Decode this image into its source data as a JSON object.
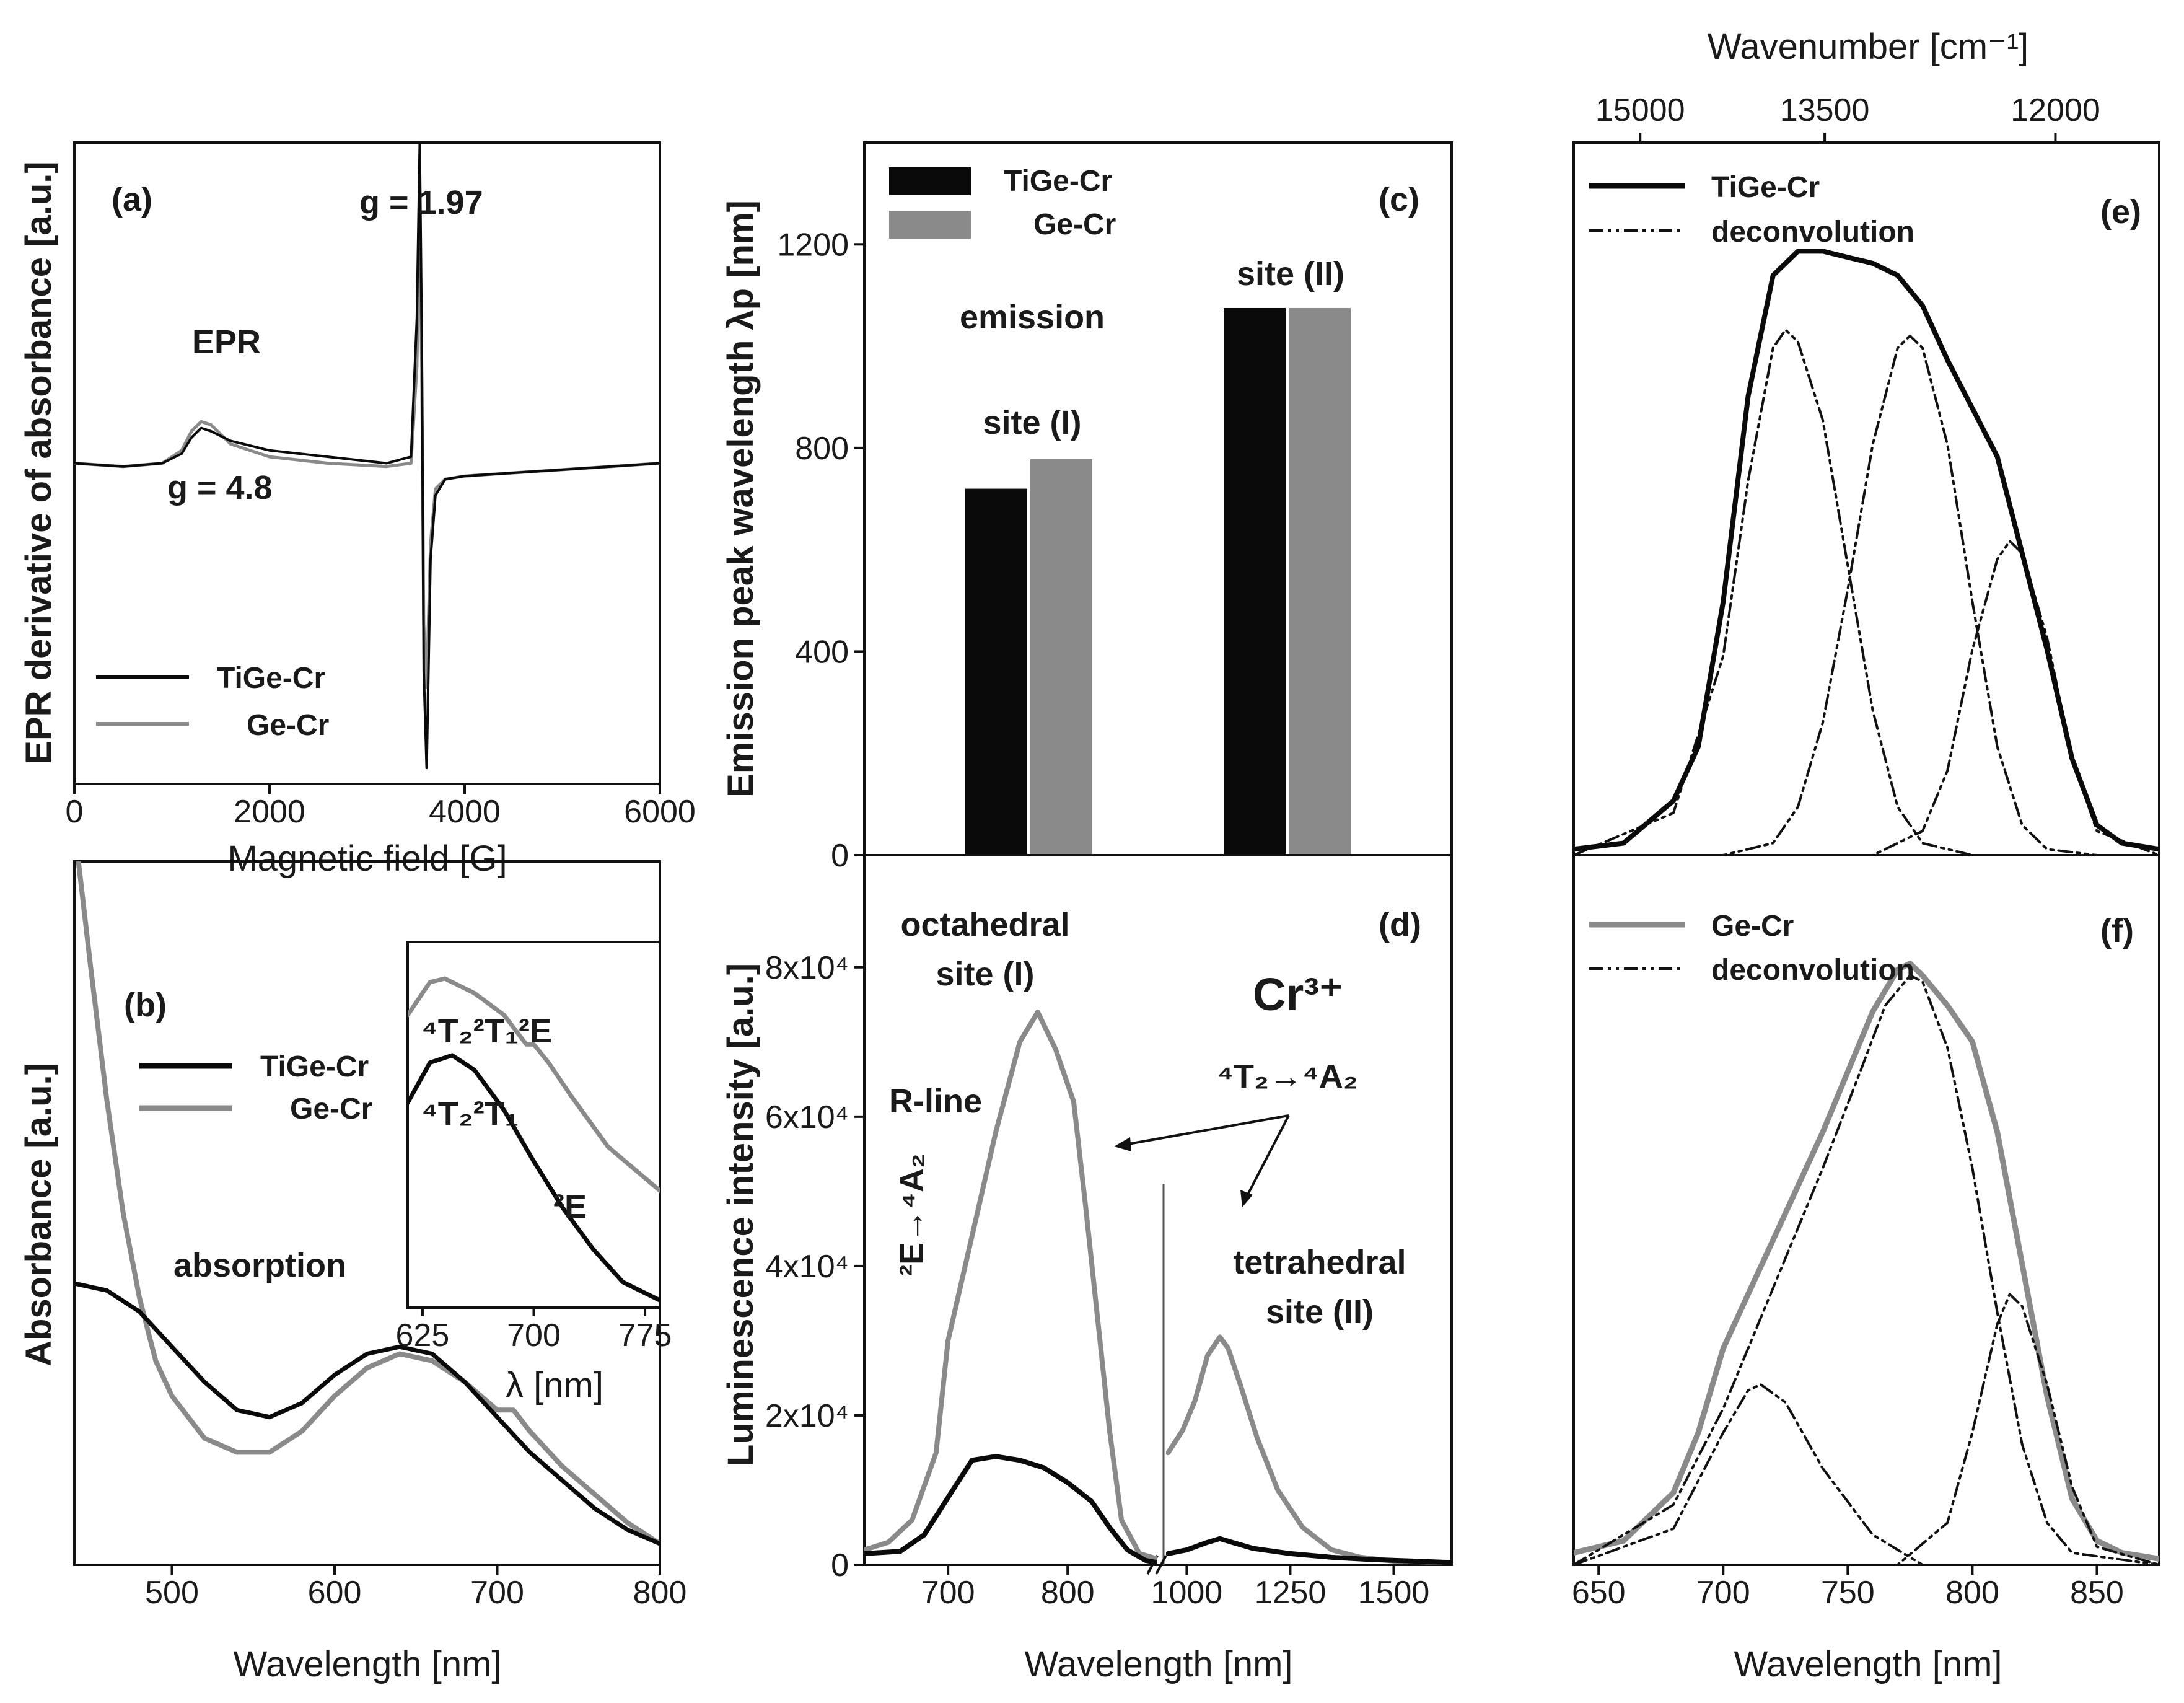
{
  "figure": "Cr-doped glass spectroscopy panels",
  "colors": {
    "tige": "#0a0a0a",
    "ge": "#8a8a8a",
    "deconv": "#111111"
  },
  "chart_data": [
    {
      "id": "a",
      "type": "line",
      "panel_label": "(a)",
      "xlabel": "Magnetic field [G]",
      "ylabel": "EPR derivative of absorbance [a.u.]",
      "xlim": [
        0,
        6000
      ],
      "ylim": [
        -1.0,
        1.0
      ],
      "xticks": [
        0,
        2000,
        4000,
        6000
      ],
      "xtick_labels": [
        "0",
        "2000",
        "4000",
        "6000"
      ],
      "annotations": {
        "method": "EPR",
        "g_high": "g = 1.97",
        "g_low": "g = 4.8"
      },
      "legend": [
        "TiGe-Cr",
        "Ge-Cr"
      ],
      "series": [
        {
          "name": "TiGe-Cr",
          "color": "#0a0a0a",
          "x": [
            0,
            500,
            900,
            1100,
            1200,
            1300,
            1400,
            1600,
            2000,
            2600,
            3200,
            3450,
            3510,
            3540,
            3560,
            3580,
            3610,
            3650,
            3700,
            3800,
            4000,
            4500,
            5000,
            5500,
            6000
          ],
          "y": [
            0.0,
            -0.01,
            0.0,
            0.03,
            0.08,
            0.11,
            0.1,
            0.07,
            0.04,
            0.02,
            0.0,
            0.02,
            0.45,
            1.0,
            0.4,
            -0.65,
            -0.95,
            -0.3,
            -0.1,
            -0.05,
            -0.04,
            -0.03,
            -0.02,
            -0.01,
            0.0
          ]
        },
        {
          "name": "Ge-Cr",
          "color": "#8a8a8a",
          "x": [
            0,
            500,
            900,
            1100,
            1200,
            1300,
            1400,
            1600,
            2000,
            2600,
            3200,
            3450,
            3510,
            3540,
            3560,
            3580,
            3610,
            3650,
            3700,
            3800,
            4000,
            4500,
            5000,
            5500,
            6000
          ],
          "y": [
            0.0,
            -0.01,
            0.0,
            0.04,
            0.1,
            0.13,
            0.12,
            0.06,
            0.02,
            0.0,
            -0.01,
            0.0,
            0.3,
            0.75,
            0.3,
            -0.5,
            -0.7,
            -0.25,
            -0.08,
            -0.05,
            -0.04,
            -0.03,
            -0.02,
            -0.01,
            0.0
          ]
        }
      ]
    },
    {
      "id": "b",
      "type": "line",
      "panel_label": "(b)",
      "xlabel": "Wavelength [nm]",
      "ylabel": "Absorbance [a.u.]",
      "xlim": [
        440,
        800
      ],
      "ylim": [
        0,
        1
      ],
      "xticks": [
        500,
        600,
        700,
        800
      ],
      "xtick_labels": [
        "500",
        "600",
        "700",
        "800"
      ],
      "annotations": {
        "method": "absorption"
      },
      "legend": [
        "TiGe-Cr",
        "Ge-Cr"
      ],
      "series": [
        {
          "name": "TiGe-Cr",
          "color": "#0a0a0a",
          "x": [
            440,
            460,
            480,
            500,
            520,
            540,
            560,
            580,
            600,
            620,
            640,
            660,
            680,
            700,
            720,
            740,
            760,
            780,
            800
          ],
          "y": [
            0.4,
            0.39,
            0.36,
            0.31,
            0.26,
            0.22,
            0.21,
            0.23,
            0.27,
            0.3,
            0.31,
            0.3,
            0.26,
            0.21,
            0.16,
            0.12,
            0.08,
            0.05,
            0.03
          ]
        },
        {
          "name": "Ge-Cr",
          "color": "#8a8a8a",
          "x": [
            440,
            450,
            460,
            470,
            480,
            490,
            500,
            520,
            540,
            560,
            580,
            600,
            620,
            640,
            660,
            680,
            700,
            710,
            720,
            740,
            760,
            780,
            800
          ],
          "y": [
            1.05,
            0.85,
            0.66,
            0.5,
            0.38,
            0.29,
            0.24,
            0.18,
            0.16,
            0.16,
            0.19,
            0.24,
            0.28,
            0.3,
            0.29,
            0.26,
            0.22,
            0.22,
            0.19,
            0.14,
            0.1,
            0.06,
            0.03
          ]
        }
      ],
      "inset": {
        "xlabel": "λ [nm]",
        "xlim": [
          615,
          785
        ],
        "xticks": [
          625,
          700,
          775
        ],
        "xtick_labels": [
          "625",
          "700",
          "775"
        ],
        "labels": {
          "ge_main": "⁴T₂²T₁²E",
          "tige_main": "⁴T₂²T₁",
          "tige_shoulder": "²E"
        },
        "series": [
          {
            "name": "Ge-Cr",
            "color": "#8a8a8a",
            "x": [
              615,
              630,
              640,
              660,
              680,
              695,
              700,
              710,
              725,
              750,
              785
            ],
            "y": [
              0.8,
              0.89,
              0.9,
              0.86,
              0.8,
              0.72,
              0.72,
              0.67,
              0.58,
              0.44,
              0.32
            ]
          },
          {
            "name": "TiGe-Cr",
            "color": "#0a0a0a",
            "x": [
              615,
              630,
              645,
              660,
              680,
              700,
              720,
              740,
              760,
              785
            ],
            "y": [
              0.56,
              0.67,
              0.69,
              0.65,
              0.54,
              0.4,
              0.27,
              0.16,
              0.07,
              0.02
            ]
          }
        ]
      }
    },
    {
      "id": "c",
      "type": "bar",
      "panel_label": "(c)",
      "ylabel": "Emission peak wavelength λp [nm]",
      "ylim": [
        0,
        1400
      ],
      "yticks": [
        0,
        400,
        800,
        1200
      ],
      "ytick_labels": [
        "0",
        "400",
        "800",
        "1200"
      ],
      "categories": [
        "site (I)",
        "site (II)"
      ],
      "annotations": {
        "title": "emission"
      },
      "legend": [
        "TiGe-Cr",
        "Ge-Cr"
      ],
      "series": [
        {
          "name": "TiGe-Cr",
          "color": "#0a0a0a",
          "values": [
            720,
            1075
          ]
        },
        {
          "name": "Ge-Cr",
          "color": "#8a8a8a",
          "values": [
            778,
            1075
          ]
        }
      ]
    },
    {
      "id": "d",
      "type": "line",
      "panel_label": "(d)",
      "xlabel": "Wavelength [nm]",
      "ylabel": "Luminescence intensity [a.u.]",
      "ylim": [
        0,
        95000
      ],
      "yticks": [
        0,
        20000,
        40000,
        60000,
        80000
      ],
      "ytick_labels": [
        "0",
        "2x10⁴",
        "4x10⁴",
        "6x10⁴",
        "8x10⁴"
      ],
      "left": {
        "xlim": [
          630,
          875
        ],
        "xticks": [
          700,
          800
        ],
        "xtick_labels": [
          "700",
          "800"
        ]
      },
      "right": {
        "xlim": [
          950,
          1640
        ],
        "xticks": [
          1000,
          1250,
          1500
        ],
        "xtick_labels": [
          "1000",
          "1250",
          "1500"
        ]
      },
      "annotations": {
        "octa_1": "octahedral",
        "octa_2": "site (I)",
        "rline": "R-line",
        "transition_r": "²E→⁴A₂",
        "ion": "Cr³⁺",
        "transition_t": "⁴T₂→⁴A₂",
        "tetra_1": "tetrahedral",
        "tetra_2": "site (II)"
      },
      "series": [
        {
          "name": "Ge-Cr",
          "color": "#8a8a8a",
          "segment": "left",
          "x": [
            630,
            650,
            670,
            690,
            700,
            720,
            740,
            760,
            775,
            790,
            805,
            815,
            825,
            835,
            845,
            860,
            875
          ],
          "y": [
            2000,
            3000,
            6000,
            15000,
            30000,
            44000,
            58000,
            70000,
            74000,
            69000,
            62000,
            48000,
            33000,
            18000,
            6000,
            1500,
            800
          ]
        },
        {
          "name": "TiGe-Cr",
          "color": "#0a0a0a",
          "segment": "left",
          "x": [
            630,
            660,
            680,
            700,
            720,
            740,
            760,
            780,
            800,
            820,
            835,
            850,
            865,
            875
          ],
          "y": [
            1500,
            1800,
            4000,
            9000,
            14000,
            14500,
            14000,
            13000,
            11000,
            8500,
            5000,
            2000,
            600,
            300
          ]
        },
        {
          "name": "Ge-Cr",
          "color": "#8a8a8a",
          "segment": "right",
          "x": [
            955,
            990,
            1020,
            1050,
            1080,
            1100,
            1130,
            1170,
            1220,
            1280,
            1350,
            1420,
            1500,
            1640
          ],
          "y": [
            15000,
            18000,
            22000,
            28000,
            30500,
            29000,
            24000,
            17000,
            10000,
            5000,
            2000,
            1000,
            500,
            300
          ]
        },
        {
          "name": "TiGe-Cr",
          "color": "#0a0a0a",
          "segment": "right",
          "x": [
            955,
            1000,
            1050,
            1080,
            1110,
            1160,
            1250,
            1350,
            1450,
            1550,
            1640
          ],
          "y": [
            1500,
            2000,
            3000,
            3500,
            3000,
            2200,
            1500,
            1000,
            700,
            500,
            300
          ]
        }
      ]
    },
    {
      "id": "e",
      "type": "line",
      "panel_label": "(e)",
      "xlim": [
        640,
        875
      ],
      "ylim": [
        0,
        1.18
      ],
      "top_axis": {
        "label": "Wavenumber [cm⁻¹]",
        "ticks": [
          15000,
          13500,
          12000
        ],
        "tick_labels": [
          "15000",
          "13500",
          "12000"
        ]
      },
      "legend": [
        "TiGe-Cr",
        "deconvolution"
      ],
      "series": [
        {
          "name": "TiGe-Cr",
          "color": "#0a0a0a",
          "x": [
            640,
            660,
            680,
            690,
            700,
            710,
            720,
            730,
            740,
            750,
            760,
            770,
            780,
            790,
            800,
            810,
            820,
            830,
            840,
            850,
            860,
            875
          ],
          "y": [
            0.01,
            0.02,
            0.09,
            0.18,
            0.42,
            0.76,
            0.96,
            1.0,
            1.0,
            0.99,
            0.98,
            0.96,
            0.91,
            0.82,
            0.74,
            0.66,
            0.5,
            0.34,
            0.16,
            0.05,
            0.02,
            0.01
          ]
        },
        {
          "name": "deconvolution 1",
          "color": "#111111",
          "dash": "dashdot",
          "x": [
            640,
            680,
            700,
            710,
            720,
            725,
            730,
            740,
            750,
            760,
            770,
            780,
            800,
            830,
            875
          ],
          "y": [
            0.0,
            0.07,
            0.33,
            0.62,
            0.84,
            0.87,
            0.85,
            0.72,
            0.48,
            0.24,
            0.08,
            0.02,
            0.0,
            0.0,
            0.0
          ]
        },
        {
          "name": "deconvolution 2",
          "color": "#111111",
          "dash": "dashdot",
          "x": [
            640,
            700,
            720,
            730,
            740,
            750,
            760,
            770,
            775,
            780,
            790,
            800,
            810,
            820,
            830,
            850,
            875
          ],
          "y": [
            0.0,
            0.0,
            0.02,
            0.08,
            0.22,
            0.44,
            0.68,
            0.84,
            0.86,
            0.84,
            0.68,
            0.42,
            0.18,
            0.05,
            0.01,
            0.0,
            0.0
          ]
        },
        {
          "name": "deconvolution 3",
          "color": "#111111",
          "dash": "dashdot",
          "x": [
            640,
            760,
            780,
            790,
            800,
            810,
            815,
            820,
            830,
            840,
            850,
            875
          ],
          "y": [
            0.0,
            0.0,
            0.04,
            0.14,
            0.34,
            0.49,
            0.52,
            0.5,
            0.36,
            0.16,
            0.04,
            0.0
          ]
        }
      ]
    },
    {
      "id": "f",
      "type": "line",
      "panel_label": "(f)",
      "xlabel": "Wavelength [nm]",
      "xlim": [
        640,
        875
      ],
      "ylim": [
        0,
        1.18
      ],
      "xticks": [
        650,
        700,
        750,
        800,
        850
      ],
      "xtick_labels": [
        "650",
        "700",
        "750",
        "800",
        "850"
      ],
      "legend": [
        "Ge-Cr",
        "deconvolution"
      ],
      "series": [
        {
          "name": "Ge-Cr",
          "color": "#8a8a8a",
          "x": [
            640,
            660,
            680,
            690,
            700,
            710,
            720,
            730,
            740,
            750,
            760,
            770,
            775,
            780,
            790,
            800,
            810,
            820,
            830,
            840,
            850,
            860,
            875
          ],
          "y": [
            0.02,
            0.04,
            0.12,
            0.22,
            0.36,
            0.45,
            0.54,
            0.63,
            0.72,
            0.82,
            0.92,
            0.99,
            1.0,
            0.98,
            0.93,
            0.87,
            0.72,
            0.5,
            0.28,
            0.11,
            0.04,
            0.02,
            0.01
          ]
        },
        {
          "name": "deconvolution 1",
          "color": "#111111",
          "dash": "dashdot",
          "x": [
            640,
            680,
            700,
            710,
            715,
            725,
            740,
            760,
            780,
            875
          ],
          "y": [
            0.0,
            0.06,
            0.22,
            0.29,
            0.3,
            0.27,
            0.16,
            0.05,
            0.0,
            0.0
          ]
        },
        {
          "name": "deconvolution 2",
          "color": "#111111",
          "dash": "dashdot",
          "x": [
            640,
            680,
            700,
            720,
            740,
            755,
            765,
            775,
            780,
            790,
            800,
            810,
            820,
            830,
            840,
            875
          ],
          "y": [
            0.0,
            0.1,
            0.26,
            0.46,
            0.66,
            0.82,
            0.93,
            0.98,
            0.97,
            0.86,
            0.66,
            0.42,
            0.2,
            0.07,
            0.02,
            0.0
          ]
        },
        {
          "name": "deconvolution 3",
          "color": "#111111",
          "dash": "dashdot",
          "x": [
            640,
            770,
            790,
            800,
            810,
            815,
            820,
            830,
            840,
            850,
            875
          ],
          "y": [
            0.0,
            0.0,
            0.07,
            0.22,
            0.4,
            0.45,
            0.43,
            0.3,
            0.13,
            0.03,
            0.0
          ]
        }
      ]
    }
  ]
}
